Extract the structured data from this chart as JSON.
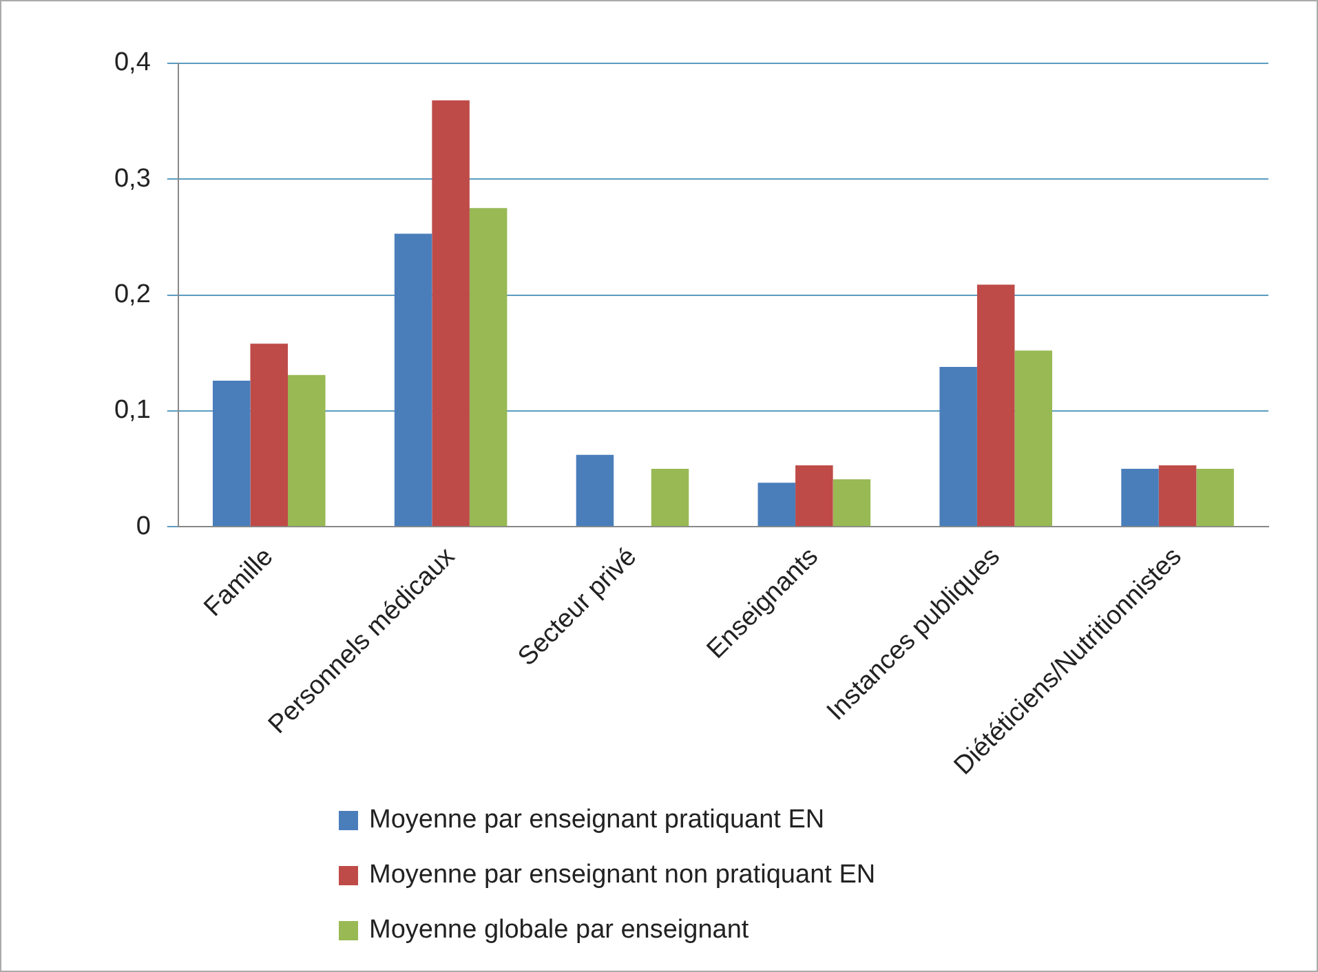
{
  "chart_data": {
    "type": "bar",
    "categories": [
      "Famille",
      "Personnels médicaux",
      "Secteur privé",
      "Enseignants",
      "Instances publiques",
      "Diététiciens/Nutritionnistes"
    ],
    "series": [
      {
        "name": "Moyenne par enseignant pratiquant EN",
        "color": "#4a7ebb",
        "values": [
          0.126,
          0.253,
          0.062,
          0.038,
          0.138,
          0.05
        ]
      },
      {
        "name": "Moyenne par enseignant non pratiquant EN",
        "color": "#be4b48",
        "values": [
          0.158,
          0.368,
          null,
          0.053,
          0.209,
          0.053
        ]
      },
      {
        "name": "Moyenne globale par enseignant",
        "color": "#98b954",
        "values": [
          0.131,
          0.275,
          0.05,
          0.041,
          0.152,
          0.05
        ]
      }
    ],
    "ylim": [
      0,
      0.4
    ],
    "yticks": [
      {
        "value": 0,
        "label": "0"
      },
      {
        "value": 0.1,
        "label": "0,1"
      },
      {
        "value": 0.2,
        "label": "0,2"
      },
      {
        "value": 0.3,
        "label": "0,3"
      },
      {
        "value": 0.4,
        "label": "0,4"
      }
    ],
    "grid": "y",
    "legend": "bottom"
  }
}
